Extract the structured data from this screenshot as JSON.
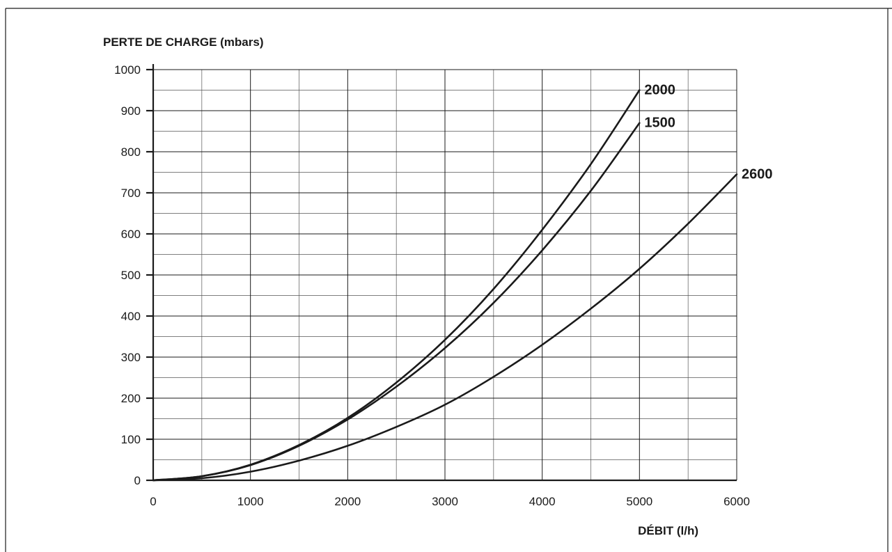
{
  "chart_data": {
    "type": "line",
    "ylabel": "PERTE DE CHARGE (mbars)",
    "xlabel": "DÉBIT (l/h)",
    "xlim": [
      0,
      6000
    ],
    "ylim": [
      0,
      1000
    ],
    "x_ticks": [
      "0",
      "1000",
      "2000",
      "3000",
      "4000",
      "5000",
      "6000"
    ],
    "y_ticks": [
      "0",
      "100",
      "200",
      "300",
      "400",
      "500",
      "600",
      "700",
      "800",
      "900",
      "1000"
    ],
    "grid": true,
    "legend": "curve-end labels",
    "series": [
      {
        "name": "2000",
        "x": [
          0,
          500,
          1000,
          1500,
          2000,
          2500,
          3000,
          3500,
          4000,
          4500,
          5000
        ],
        "y": [
          0,
          10,
          38,
          86,
          152,
          238,
          342,
          466,
          610,
          770,
          950
        ]
      },
      {
        "name": "1500",
        "x": [
          0,
          500,
          1000,
          1500,
          2000,
          2500,
          3000,
          3500,
          4000,
          4500,
          5000
        ],
        "y": [
          0,
          10,
          37,
          84,
          148,
          228,
          322,
          432,
          560,
          705,
          870
        ]
      },
      {
        "name": "2600",
        "x": [
          0,
          500,
          1000,
          1500,
          2000,
          2500,
          3000,
          3500,
          4000,
          4500,
          5000,
          5500,
          6000
        ],
        "y": [
          0,
          5,
          21,
          48,
          84,
          130,
          184,
          252,
          330,
          418,
          515,
          625,
          745
        ]
      }
    ]
  }
}
